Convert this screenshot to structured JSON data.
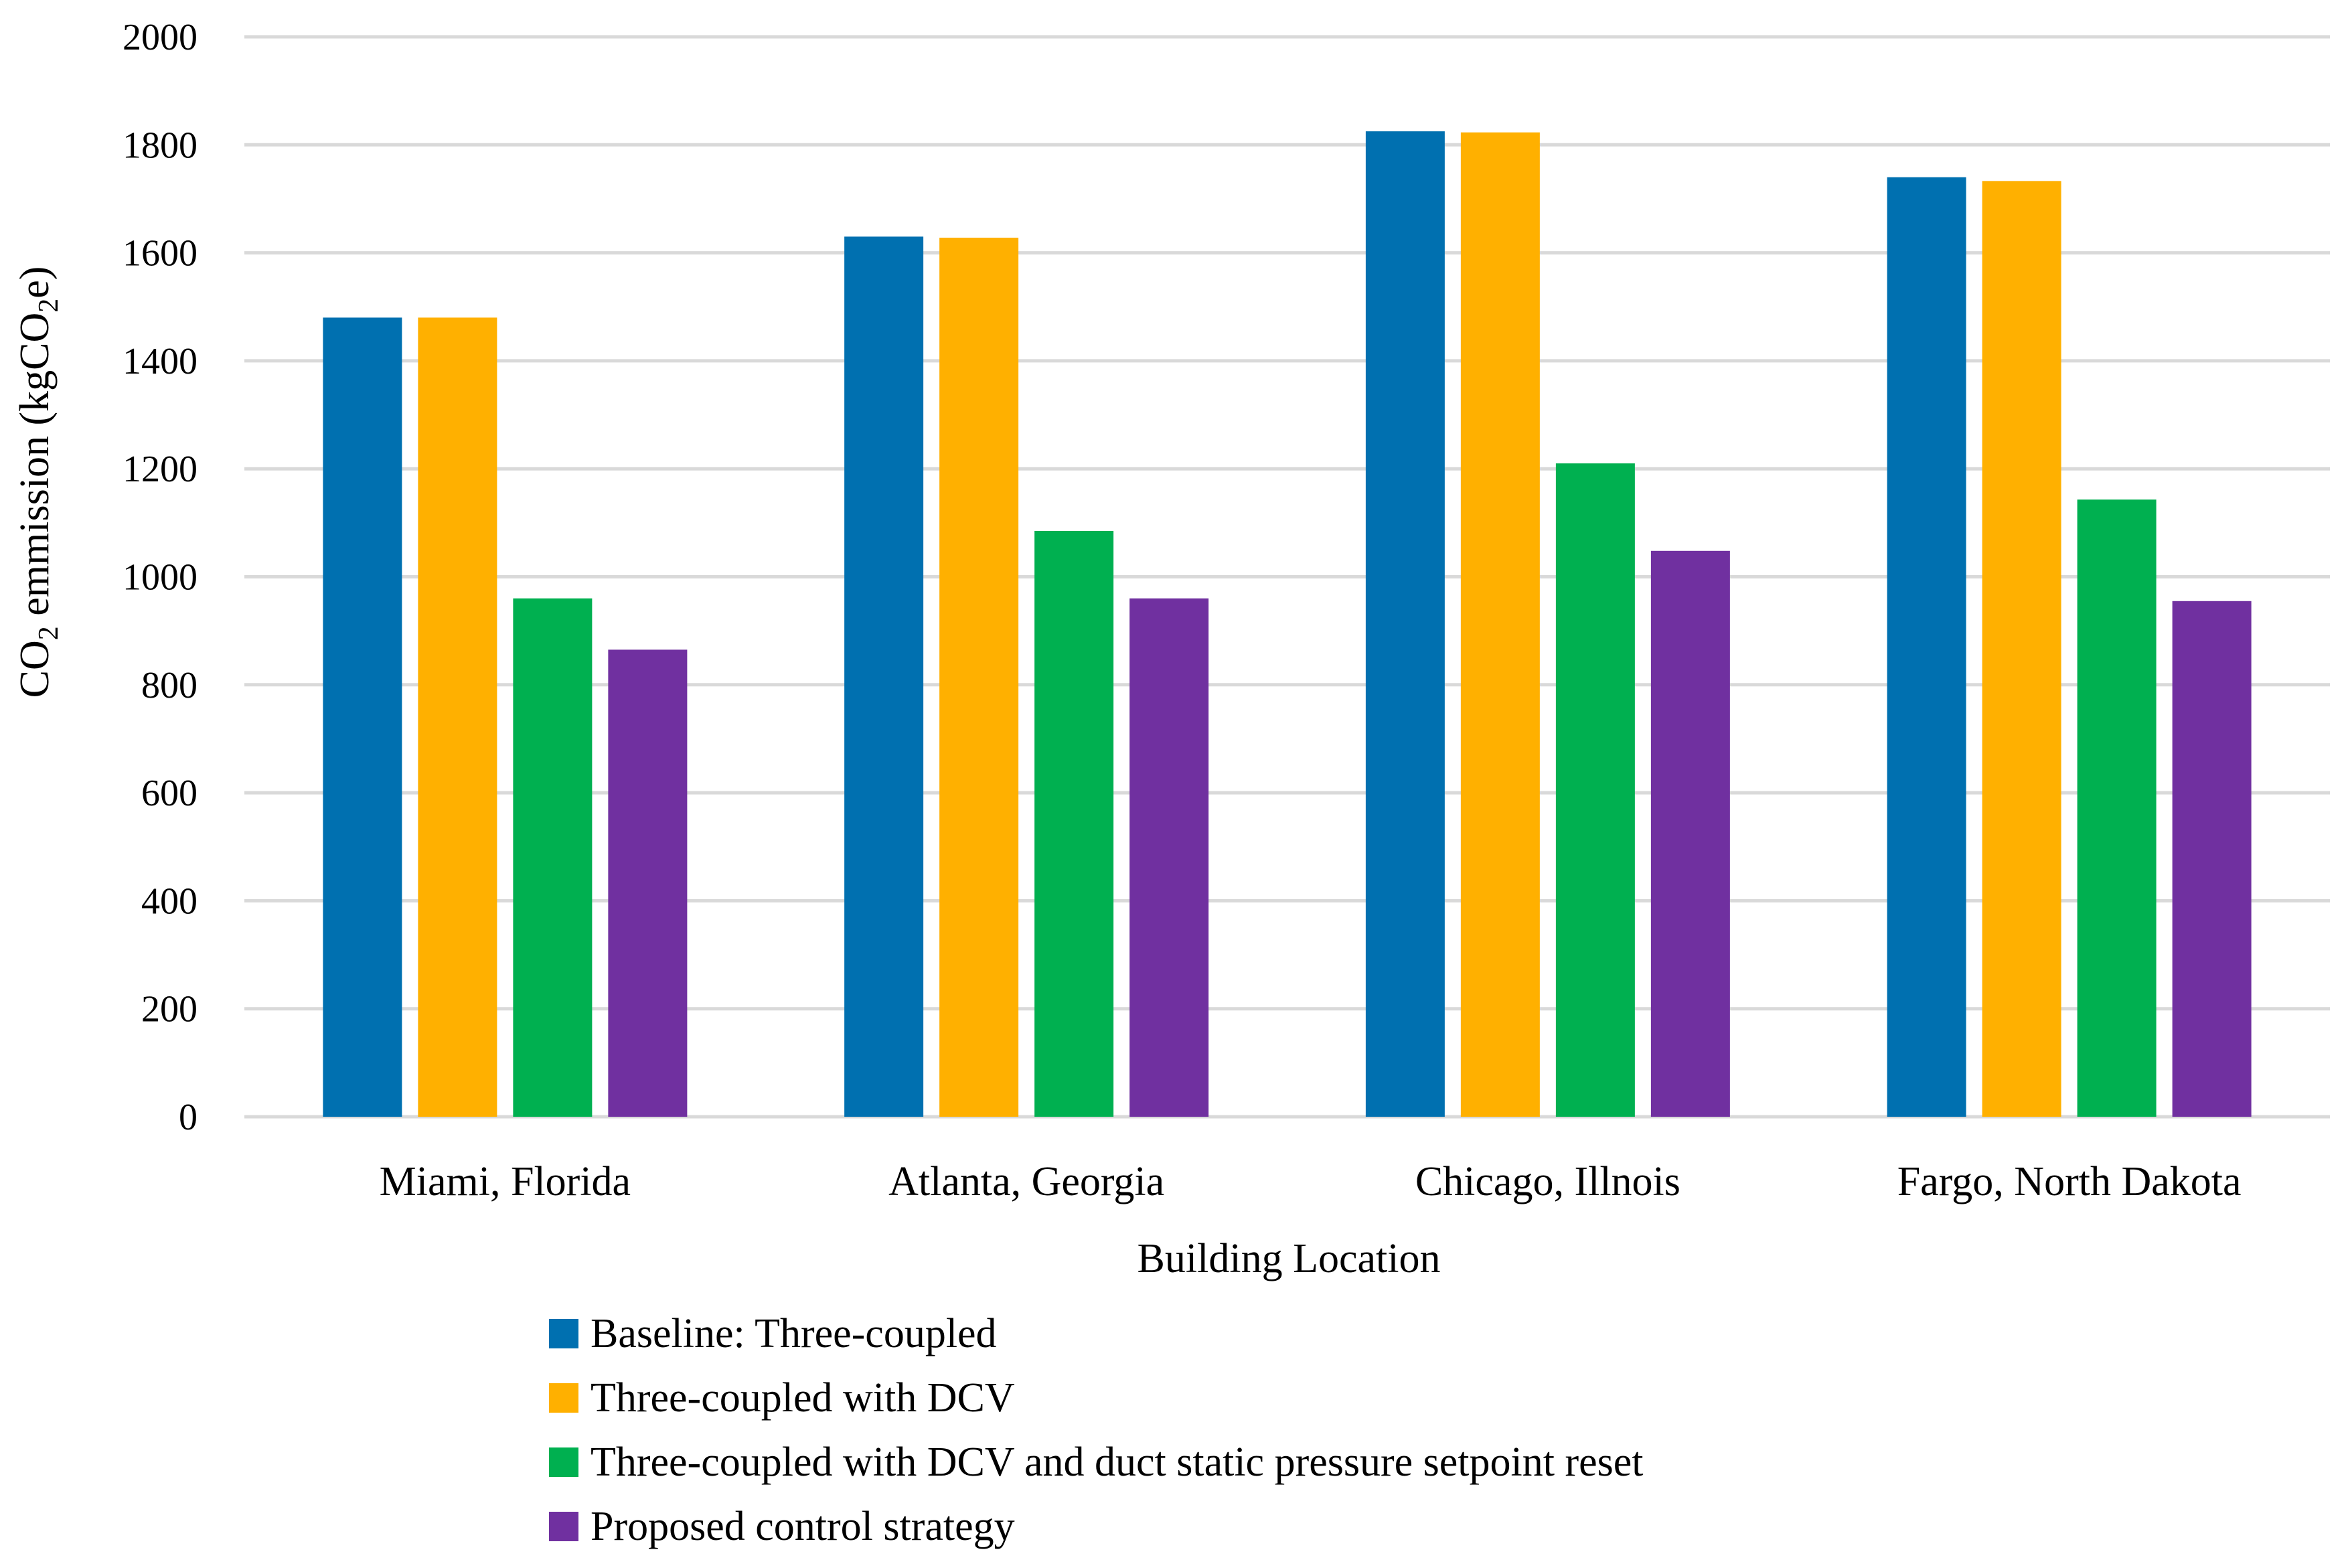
{
  "chart_data": {
    "type": "bar",
    "title": "",
    "xlabel": "Building Location",
    "ylabel": {
      "prefix": "CO",
      "sub1": "2",
      "middle": " emmission (kgCO",
      "sub2": "2",
      "suffix": "e)"
    },
    "ylim": [
      0,
      2000
    ],
    "yticks": [
      0,
      200,
      400,
      600,
      800,
      1000,
      1200,
      1400,
      1600,
      1800,
      2000
    ],
    "grid": true,
    "legend_position": "bottom",
    "categories": [
      "Miami, Florida",
      "Atlanta, Georgia",
      "Chicago, Illnois",
      "Fargo, North Dakota"
    ],
    "series": [
      {
        "name": "Baseline: Three-coupled",
        "color": "#0070b0",
        "values": [
          1480,
          1630,
          1825,
          1740
        ]
      },
      {
        "name": "Three-coupled with DCV",
        "color": "#ffb000",
        "values": [
          1480,
          1628,
          1823,
          1733
        ]
      },
      {
        "name": "Three-coupled with DCV and duct static pressure setpoint reset",
        "color": "#00b050",
        "values": [
          960,
          1085,
          1210,
          1143
        ]
      },
      {
        "name": "Proposed control strategy",
        "color": "#7030a0",
        "values": [
          865,
          960,
          1048,
          955
        ]
      }
    ]
  }
}
